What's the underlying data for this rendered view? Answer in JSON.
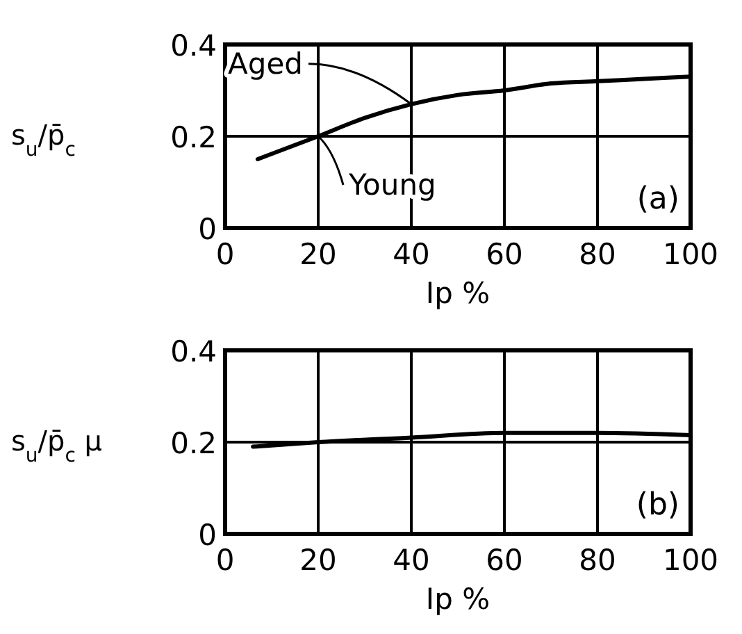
{
  "chart_data": [
    {
      "type": "line",
      "ylabel": "s$_{u}$/p̄$_{c}$",
      "xlabel": "Ip %",
      "x": [
        7,
        20,
        30,
        40,
        50,
        60,
        70,
        80,
        90,
        100
      ],
      "series": [
        {
          "color": "#000000",
          "values": [
            0.15,
            0.2,
            0.24,
            0.27,
            0.29,
            0.3,
            0.315,
            0.32,
            0.325,
            0.33
          ]
        }
      ],
      "xlim": [
        0,
        100
      ],
      "ylim": [
        0,
        0.4
      ],
      "xticks": [
        0,
        20,
        40,
        60,
        80,
        100
      ],
      "yticks": [
        0,
        0.2,
        0.4
      ],
      "grid": true,
      "annotations": [
        {
          "text": "Aged",
          "x": 40,
          "y": 0.27
        },
        {
          "text": "Young",
          "x": 20,
          "y": 0.2
        },
        "(a)"
      ]
    },
    {
      "type": "line",
      "ylabel": "s$_{u}$/p̄$_{c}$ μ",
      "xlabel": "Ip %",
      "x": [
        6,
        20,
        40,
        60,
        80,
        100
      ],
      "series": [
        {
          "color": "#000000",
          "values": [
            0.19,
            0.2,
            0.21,
            0.22,
            0.22,
            0.215
          ]
        }
      ],
      "xlim": [
        0,
        100
      ],
      "ylim": [
        0,
        0.4
      ],
      "xticks": [
        0,
        20,
        40,
        60,
        80,
        100
      ],
      "yticks": [
        0,
        0.2,
        0.4
      ],
      "grid": true,
      "annotations": [
        "(b)"
      ]
    }
  ]
}
